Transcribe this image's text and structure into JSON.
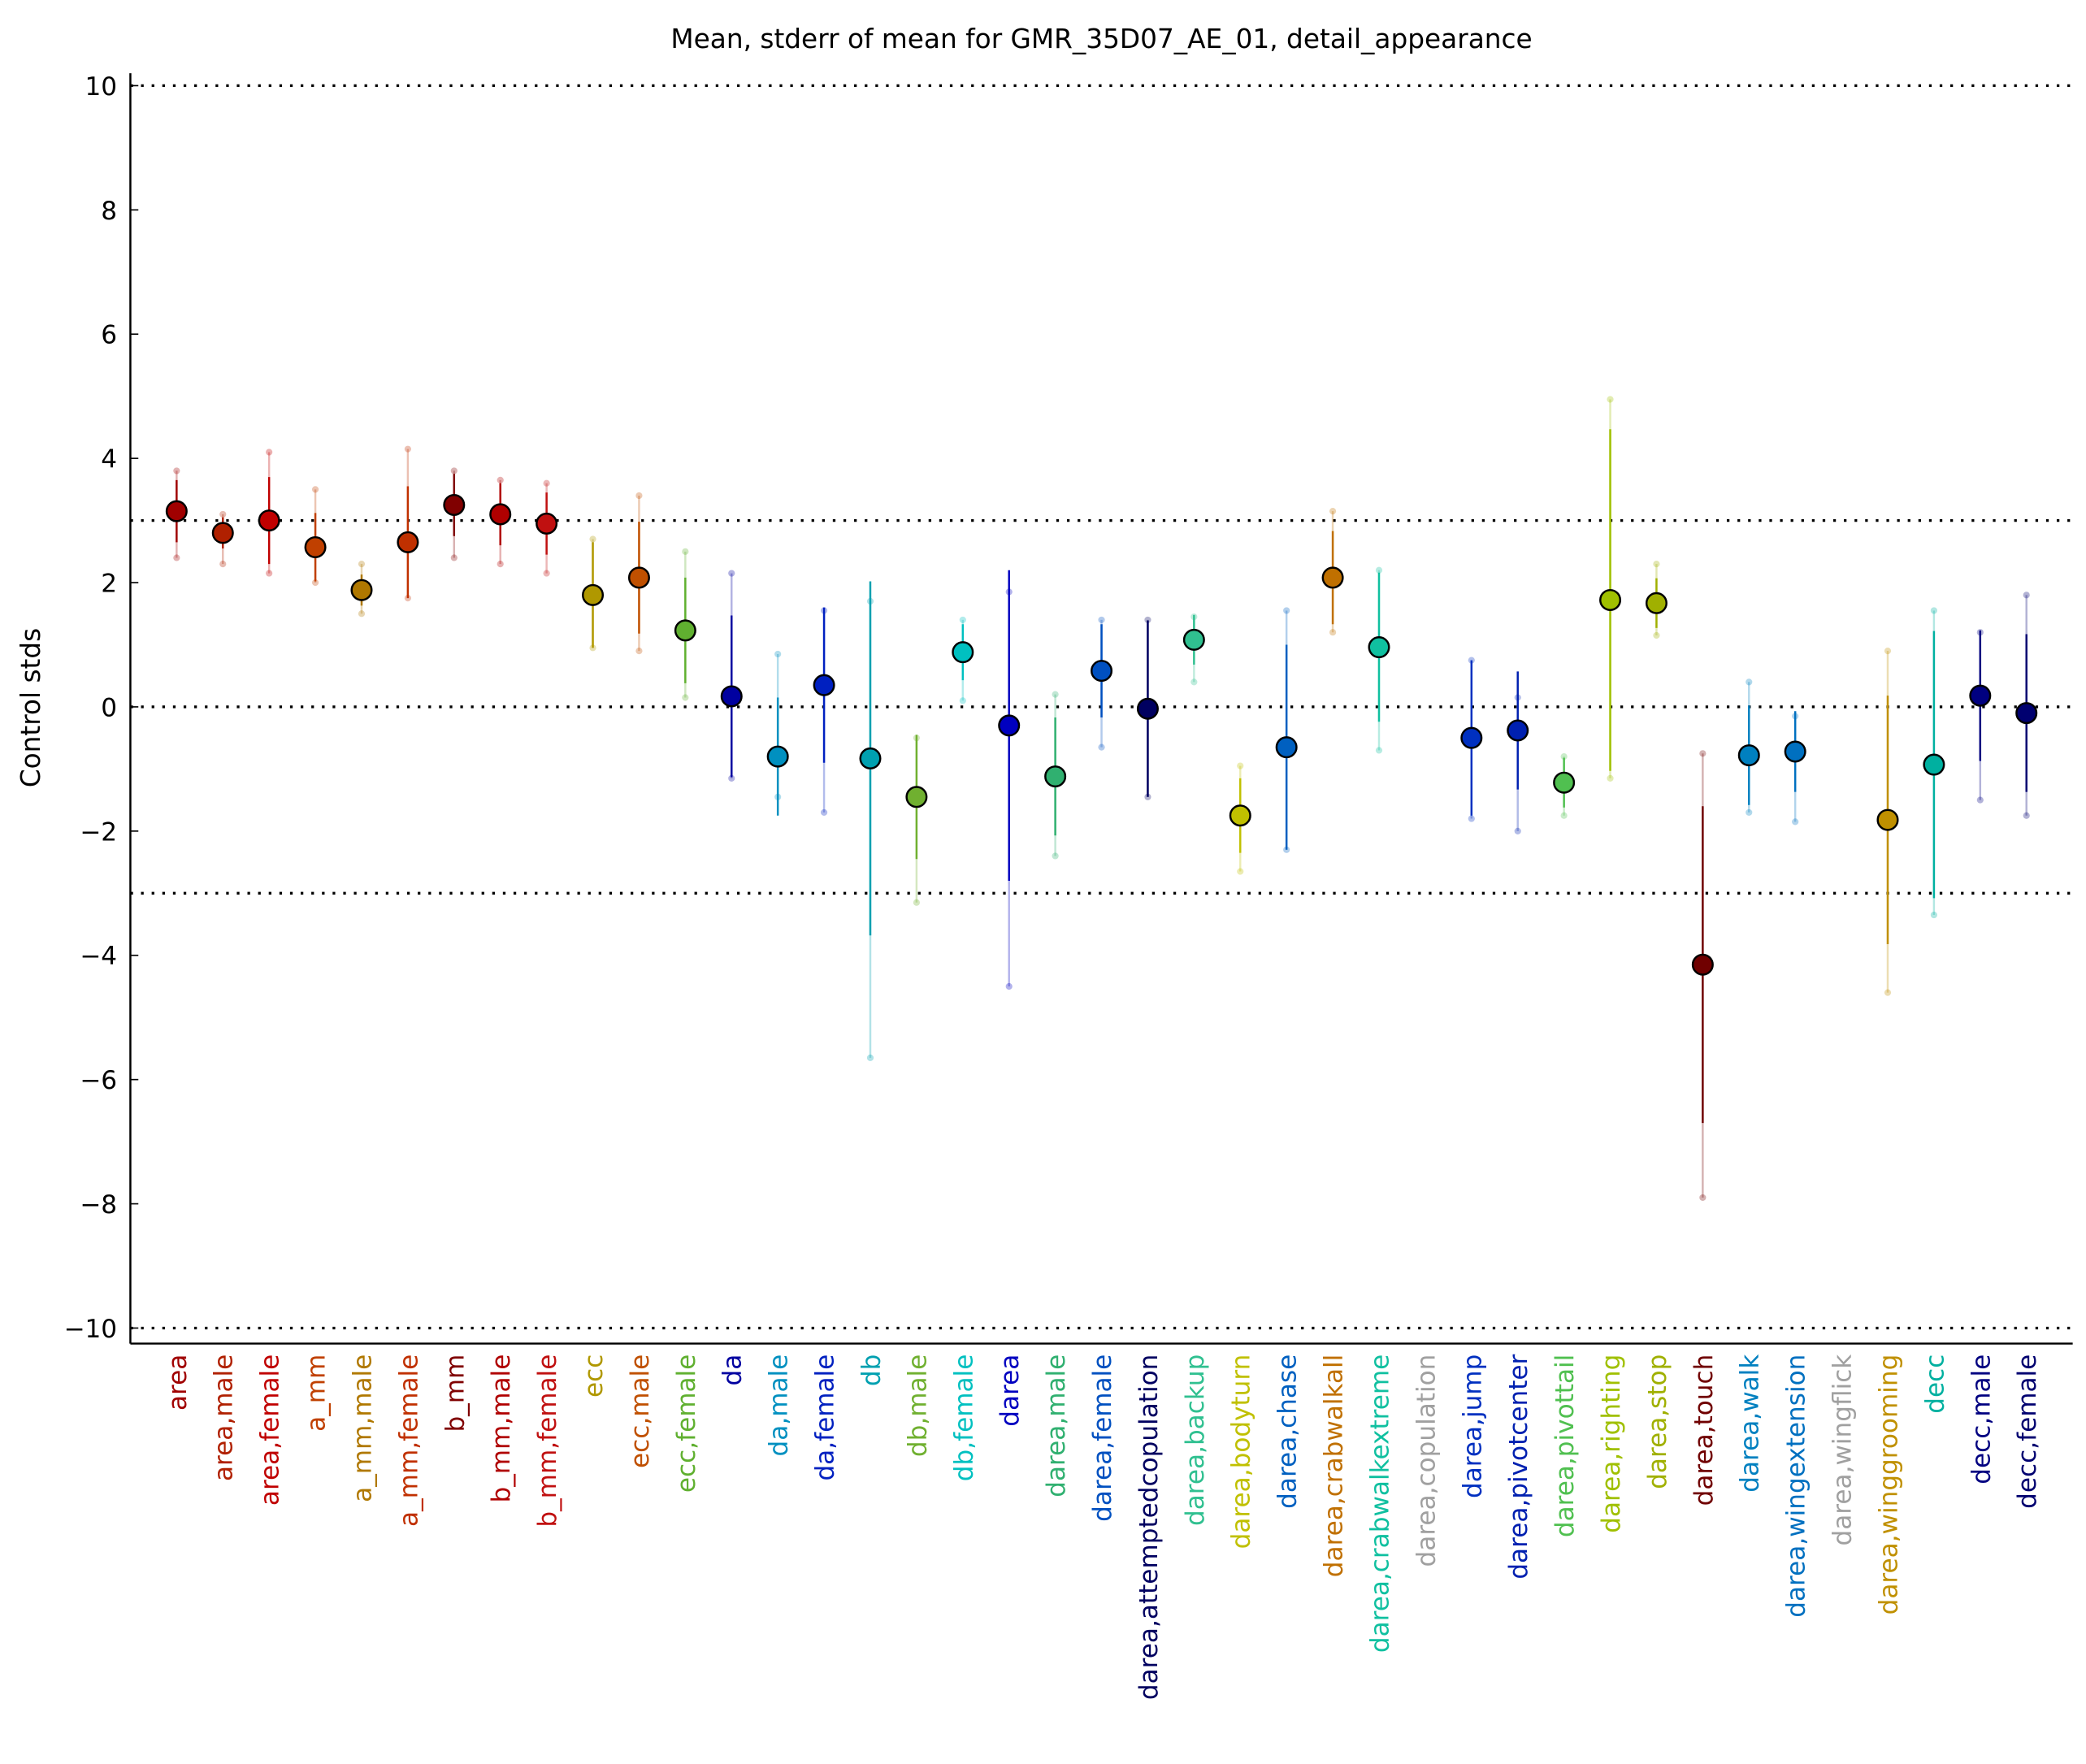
{
  "chart_data": {
    "type": "errorbar",
    "title": "Mean, stderr of mean for GMR_35D07_AE_01, detail_appearance",
    "ylabel": "Control stds",
    "categories": [
      "area",
      "area,male",
      "area,female",
      "a_mm",
      "a_mm,male",
      "a_mm,female",
      "b_mm",
      "b_mm,male",
      "b_mm,female",
      "ecc",
      "ecc,male",
      "ecc,female",
      "da",
      "da,male",
      "da,female",
      "db",
      "db,male",
      "db,female",
      "darea",
      "darea,male",
      "darea,female",
      "darea,attemptedcopulation",
      "darea,backup",
      "darea,bodyturn",
      "darea,chase",
      "darea,crabwalkall",
      "darea,crabwalkextreme",
      "darea,copulation",
      "darea,jump",
      "darea,pivotcenter",
      "darea,pivottail",
      "darea,righting",
      "darea,stop",
      "darea,touch",
      "darea,walk",
      "darea,wingextension",
      "darea,wingflick",
      "darea,winggrooming",
      "decc",
      "decc,male",
      "decc,female"
    ],
    "colors": [
      "#a00000",
      "#b02000",
      "#c00000",
      "#c04000",
      "#b07800",
      "#c03000",
      "#800000",
      "#b00000",
      "#c01010",
      "#b09800",
      "#c05000",
      "#60b030",
      "#0000a0",
      "#0090c0",
      "#0020c0",
      "#00a0b0",
      "#70b030",
      "#00c0c0",
      "#0000c0",
      "#30b070",
      "#0050c0",
      "#000060",
      "#30c090",
      "#c0c000",
      "#0060c0",
      "#c07000",
      "#10c0a0",
      "#a0a0a0",
      "#0030c0",
      "#0020b0",
      "#50c050",
      "#a0c000",
      "#a0b000",
      "#700000",
      "#0080c0",
      "#0070c0",
      "#a0a0a0",
      "#c09000",
      "#00b0a0",
      "#000080",
      "#000070"
    ],
    "values": [
      3.15,
      2.8,
      3.0,
      2.57,
      1.88,
      2.65,
      3.25,
      3.1,
      2.95,
      1.8,
      2.08,
      1.23,
      0.17,
      -0.8,
      0.35,
      -0.83,
      -1.45,
      0.88,
      -0.3,
      -1.12,
      0.58,
      -0.03,
      1.08,
      -1.75,
      -0.65,
      2.08,
      0.96,
      null,
      -0.5,
      -0.38,
      -1.22,
      1.72,
      1.67,
      -4.15,
      -0.78,
      -0.72,
      null,
      -1.82,
      -0.93,
      0.18,
      -0.1
    ],
    "errors": [
      0.5,
      0.25,
      0.7,
      0.55,
      0.25,
      0.9,
      0.5,
      0.5,
      0.5,
      0.85,
      0.9,
      0.85,
      1.3,
      0.95,
      1.25,
      2.85,
      1.0,
      0.45,
      2.5,
      0.95,
      0.75,
      1.42,
      0.4,
      0.6,
      1.65,
      0.75,
      1.2,
      null,
      1.25,
      0.95,
      0.4,
      2.75,
      0.4,
      2.55,
      0.8,
      0.65,
      null,
      2.0,
      2.15,
      1.05,
      1.27
    ],
    "range_lo": [
      2.4,
      2.3,
      2.15,
      2.0,
      1.5,
      1.75,
      2.4,
      2.3,
      2.15,
      0.95,
      0.9,
      0.15,
      -1.15,
      -1.45,
      -1.7,
      -5.65,
      -3.15,
      0.1,
      -4.5,
      -2.4,
      -0.65,
      -1.45,
      0.4,
      -2.65,
      -2.3,
      1.2,
      -0.7,
      null,
      -1.8,
      -2.0,
      -1.75,
      -1.15,
      1.15,
      -7.9,
      -1.7,
      -1.85,
      null,
      -4.6,
      -3.35,
      -1.5,
      -1.75
    ],
    "range_hi": [
      3.8,
      3.1,
      4.1,
      3.5,
      2.3,
      4.15,
      3.8,
      3.65,
      3.6,
      2.7,
      3.4,
      2.5,
      2.15,
      0.85,
      1.55,
      1.7,
      -0.5,
      1.4,
      1.85,
      0.2,
      1.4,
      1.4,
      1.45,
      -0.95,
      1.55,
      3.15,
      2.2,
      null,
      0.75,
      0.15,
      -0.8,
      4.95,
      2.3,
      -0.75,
      0.4,
      -0.15,
      null,
      0.9,
      1.55,
      1.2,
      1.8
    ],
    "xlim": [
      -1,
      41
    ],
    "ylim": [
      -10.25,
      10.2
    ],
    "yticks": [
      -10,
      -8,
      -6,
      -4,
      -2,
      0,
      2,
      4,
      6,
      8,
      10
    ],
    "hlines": [
      -10,
      -3,
      0,
      3,
      10
    ]
  }
}
